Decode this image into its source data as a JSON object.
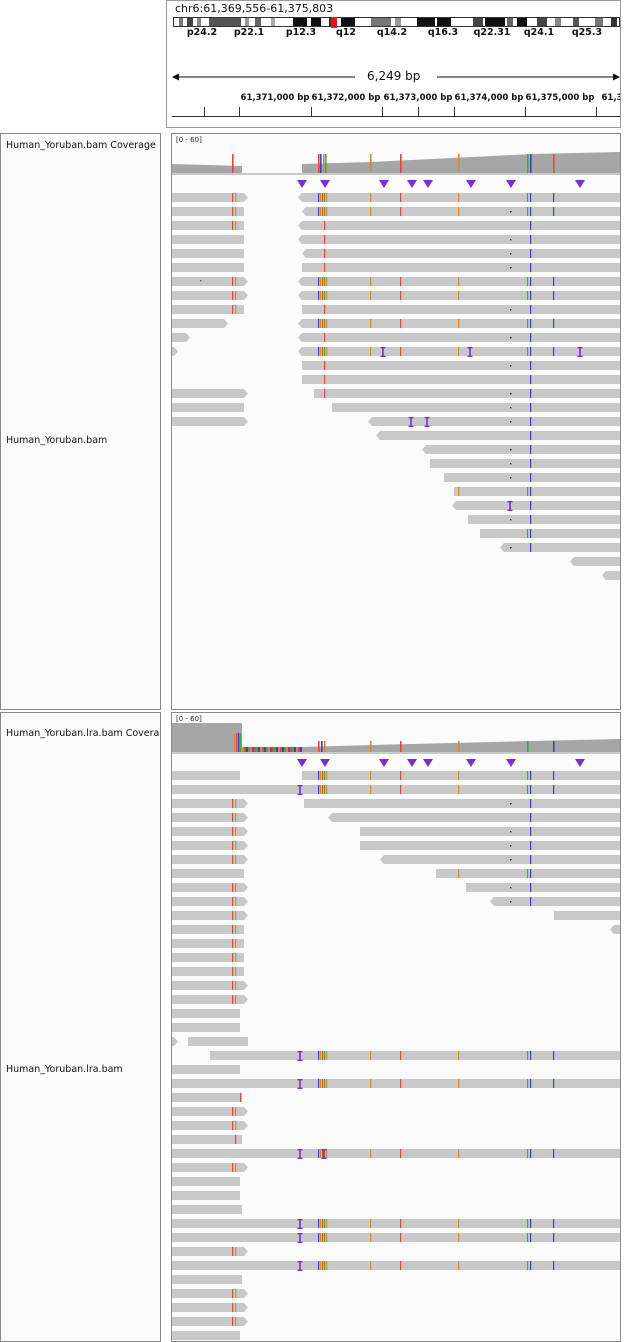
{
  "header": {
    "locus": "chr6:61,369,556-61,375,803",
    "span": "6,249 bp",
    "bands": [
      "p24.2",
      "p22.1",
      "p12.3",
      "q12",
      "q14.2",
      "q16.3",
      "q22.31",
      "q24.1",
      "q25.3"
    ],
    "ruler_ticks": [
      "61,371,000 bp",
      "61,372,000 bp",
      "61,373,000 bp",
      "61,374,000 bp",
      "61,375,000 bp",
      "61,3"
    ]
  },
  "tracks": [
    {
      "name": "Human_Yoruban.bam Coverage",
      "range": "[0 - 60]"
    },
    {
      "name": "Human_Yoruban.bam"
    },
    {
      "name": "Human_Yoruban.lra.bam Coverage",
      "range": "[0 - 60]"
    },
    {
      "name": "Human_Yoruban.lra.bam"
    }
  ],
  "colors": {
    "read": "#c8c8c8",
    "coverage": "#a6a6a6",
    "insertion": "#7b2fd0",
    "mismatch_red": "#e34a3a",
    "mismatch_orange": "#d88a2c",
    "mismatch_blue": "#3a43c8",
    "mismatch_green": "#33b33c"
  }
}
